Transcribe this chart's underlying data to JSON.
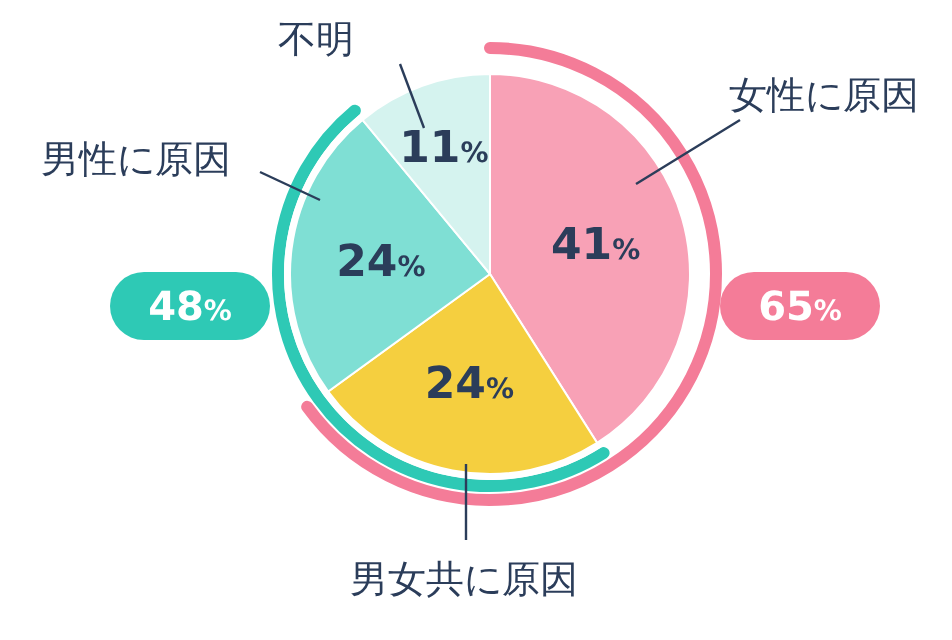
{
  "chart_data": {
    "type": "pie",
    "categories": [
      "女性に原因",
      "男女共に原因",
      "男性に原因",
      "不明"
    ],
    "values": [
      41,
      24,
      24,
      11
    ],
    "colors": [
      "#f8a1b6",
      "#f5cf3f",
      "#7fdfd4",
      "#d5f3ef"
    ],
    "value_labels": [
      "41%",
      "24%",
      "24%",
      "11%"
    ],
    "annotations": [
      "65%",
      "48%"
    ]
  }
}
